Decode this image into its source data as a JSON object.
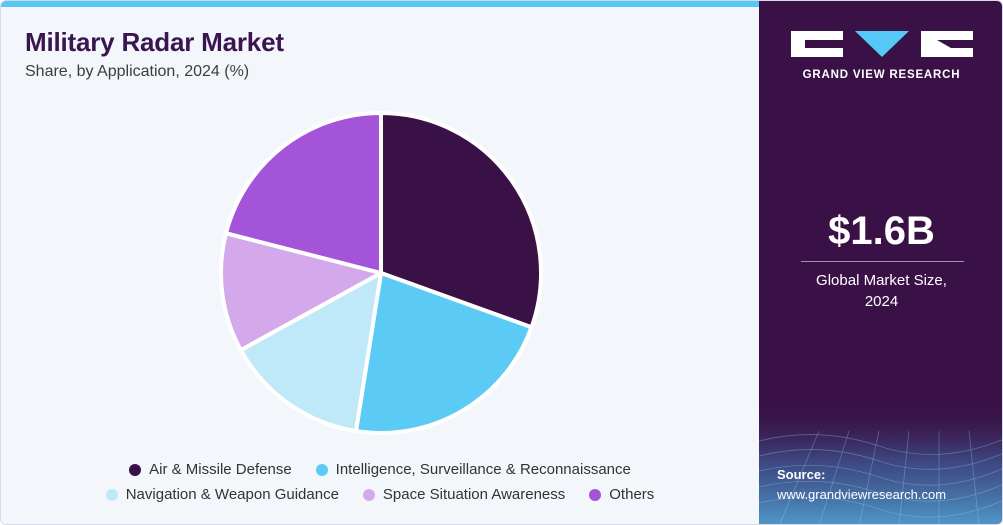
{
  "header": {
    "title": "Military Radar Market",
    "subtitle": "Share, by Application, 2024 (%)"
  },
  "brand": {
    "name": "GRAND VIEW RESEARCH"
  },
  "market": {
    "value": "$1.6B",
    "caption_line1": "Global Market Size,",
    "caption_line2": "2024"
  },
  "source": {
    "label": "Source:",
    "url": "www.grandviewresearch.com"
  },
  "colors": {
    "title": "#3a1550",
    "right_panel": "#3a1146",
    "accent": "#55c8f6"
  },
  "chart_data": {
    "type": "pie",
    "title": "Military Radar Market",
    "subtitle": "Share, by Application, 2024 (%)",
    "legend_position": "bottom",
    "start_angle_deg": 0,
    "direction": "clockwise",
    "slices": [
      {
        "label": "Air & Missile Defense",
        "value": 30.5,
        "color": "#3a1146"
      },
      {
        "label": "Intelligence, Surveillance & Reconnaissance",
        "value": 22.0,
        "color": "#5bcbf5"
      },
      {
        "label": "Navigation & Weapon Guidance",
        "value": 14.5,
        "color": "#bfe8f9"
      },
      {
        "label": "Space Situation Awareness",
        "value": 12.0,
        "color": "#d4a9ec"
      },
      {
        "label": "Others",
        "value": 21.0,
        "color": "#a354d9"
      }
    ]
  }
}
